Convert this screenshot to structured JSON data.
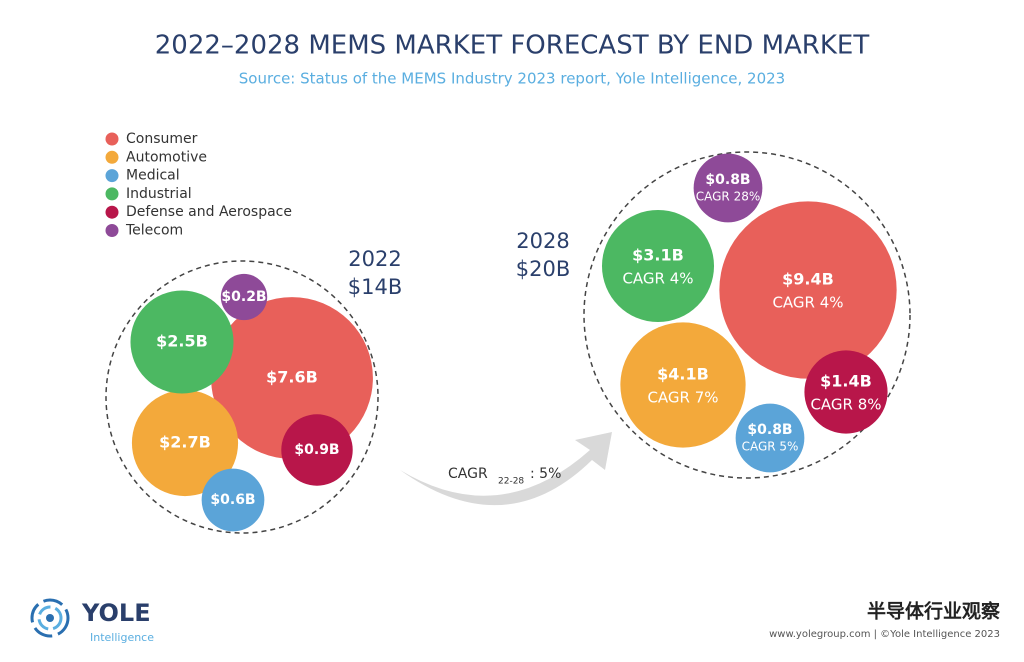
{
  "title": "2022–2028 MEMS MARKET FORECAST BY END MARKET",
  "subtitle": "Source: Status of the MEMS Industry 2023 report, Yole Intelligence, 2023",
  "chart_data": [
    {
      "type": "bubble",
      "year": "2022",
      "total": 14,
      "total_label": "$14B",
      "categories": [
        "Consumer",
        "Automotive",
        "Medical",
        "Industrial",
        "Defense and Aerospace",
        "Telecom"
      ],
      "colors": [
        "#e8605a",
        "#f3a93b",
        "#5ba4d8",
        "#4cb862",
        "#b8164a",
        "#8e4a98"
      ],
      "values": [
        7.6,
        2.7,
        0.6,
        2.5,
        0.9,
        0.2
      ],
      "value_labels": [
        "$7.6B",
        "$2.7B",
        "$0.6B",
        "$2.5B",
        "$0.9B",
        "$0.2B"
      ]
    },
    {
      "type": "bubble",
      "year": "2028",
      "total": 20,
      "total_label": "$20B",
      "categories": [
        "Consumer",
        "Automotive",
        "Medical",
        "Industrial",
        "Defense and Aerospace",
        "Telecom"
      ],
      "colors": [
        "#e8605a",
        "#f3a93b",
        "#5ba4d8",
        "#4cb862",
        "#b8164a",
        "#8e4a98"
      ],
      "values": [
        9.4,
        4.1,
        0.8,
        3.1,
        1.4,
        0.8
      ],
      "value_labels": [
        "$9.4B",
        "$4.1B",
        "$0.8B",
        "$3.1B",
        "$1.4B",
        "$0.8B"
      ],
      "cagr": [
        4,
        7,
        5,
        4,
        8,
        28
      ],
      "cagr_labels": [
        "CAGR 4%",
        "CAGR 7%",
        "CAGR 5%",
        "CAGR 4%",
        "CAGR 8%",
        "CAGR 28%"
      ]
    }
  ],
  "overall_cagr": {
    "prefix": "CAGR",
    "period": "22-28",
    "value": 5,
    "label": ": 5%"
  },
  "footer": {
    "logo": "YOLE",
    "logo_sub": "Intelligence",
    "watermark": "半导体行业观察",
    "credit": "www.yolegroup.com | ©Yole Intelligence 2023"
  }
}
